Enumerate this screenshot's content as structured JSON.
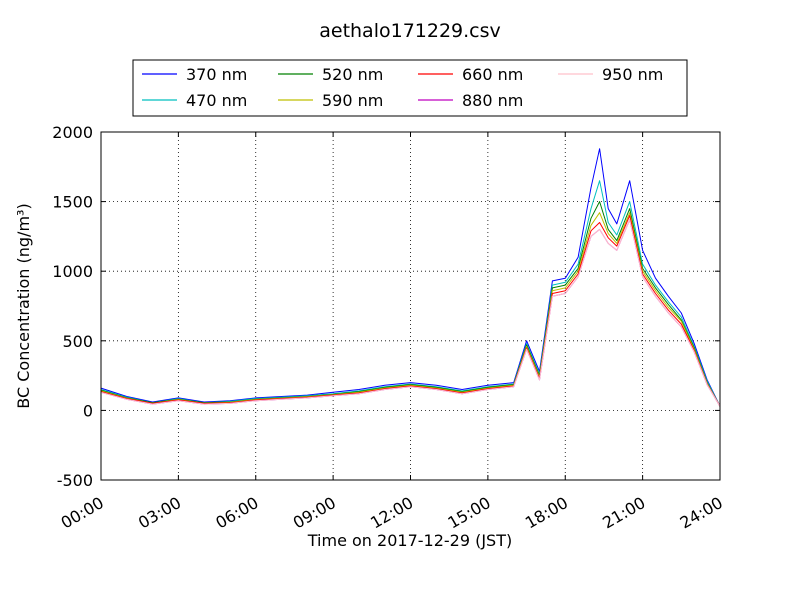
{
  "chart_data": {
    "type": "line",
    "title": "aethalo171229.csv",
    "xlabel": "Time on 2017-12-29 (JST)",
    "ylabel": "BC Concentration (ng/m³)",
    "xlim": [
      "00:00",
      "24:00"
    ],
    "ylim": [
      -500,
      2000
    ],
    "xticks": [
      "00:00",
      "03:00",
      "06:00",
      "09:00",
      "12:00",
      "15:00",
      "18:00",
      "21:00",
      "24:00"
    ],
    "yticks": [
      -500,
      0,
      500,
      1000,
      1500,
      2000
    ],
    "grid": true,
    "legend_position": "top-center",
    "series": [
      {
        "name": "370 nm",
        "color": "#0000ff",
        "x": [
          "00:00",
          "01:00",
          "02:00",
          "03:00",
          "04:00",
          "05:00",
          "06:00",
          "07:00",
          "08:00",
          "09:00",
          "10:00",
          "11:00",
          "12:00",
          "13:00",
          "14:00",
          "15:00",
          "16:00",
          "16:30",
          "17:00",
          "17:30",
          "18:00",
          "18:30",
          "19:00",
          "19:20",
          "19:40",
          "20:00",
          "20:30",
          "21:00",
          "21:30",
          "22:00",
          "22:30",
          "23:00",
          "23:30",
          "24:00"
        ],
        "y": [
          160,
          100,
          60,
          90,
          60,
          70,
          90,
          100,
          110,
          130,
          150,
          180,
          200,
          180,
          150,
          180,
          200,
          500,
          280,
          930,
          950,
          1100,
          1600,
          1880,
          1450,
          1340,
          1650,
          1150,
          950,
          820,
          700,
          480,
          220,
          30
        ]
      },
      {
        "name": "470 nm",
        "color": "#00bfbf",
        "x": [
          "00:00",
          "01:00",
          "02:00",
          "03:00",
          "04:00",
          "05:00",
          "06:00",
          "07:00",
          "08:00",
          "09:00",
          "10:00",
          "11:00",
          "12:00",
          "13:00",
          "14:00",
          "15:00",
          "16:00",
          "16:30",
          "17:00",
          "17:30",
          "18:00",
          "18:30",
          "19:00",
          "19:20",
          "19:40",
          "20:00",
          "20:30",
          "21:00",
          "21:30",
          "22:00",
          "22:30",
          "23:00",
          "23:30",
          "24:00"
        ],
        "y": [
          150,
          95,
          55,
          85,
          55,
          65,
          85,
          95,
          105,
          120,
          140,
          170,
          190,
          170,
          140,
          170,
          190,
          480,
          260,
          900,
          920,
          1050,
          1450,
          1650,
          1350,
          1260,
          1500,
          1050,
          900,
          780,
          670,
          460,
          210,
          30
        ]
      },
      {
        "name": "520 nm",
        "color": "#008000",
        "x": [
          "00:00",
          "01:00",
          "02:00",
          "03:00",
          "04:00",
          "05:00",
          "06:00",
          "07:00",
          "08:00",
          "09:00",
          "10:00",
          "11:00",
          "12:00",
          "13:00",
          "14:00",
          "15:00",
          "16:00",
          "16:30",
          "17:00",
          "17:30",
          "18:00",
          "18:30",
          "19:00",
          "19:20",
          "19:40",
          "20:00",
          "20:30",
          "21:00",
          "21:30",
          "22:00",
          "22:30",
          "23:00",
          "23:30",
          "24:00"
        ],
        "y": [
          145,
          90,
          55,
          80,
          55,
          60,
          80,
          90,
          100,
          115,
          135,
          165,
          185,
          165,
          135,
          165,
          185,
          470,
          250,
          880,
          900,
          1020,
          1380,
          1500,
          1300,
          1220,
          1450,
          1020,
          880,
          760,
          650,
          450,
          200,
          30
        ]
      },
      {
        "name": "590 nm",
        "color": "#bfbf00",
        "x": [
          "00:00",
          "01:00",
          "02:00",
          "03:00",
          "04:00",
          "05:00",
          "06:00",
          "07:00",
          "08:00",
          "09:00",
          "10:00",
          "11:00",
          "12:00",
          "13:00",
          "14:00",
          "15:00",
          "16:00",
          "16:30",
          "17:00",
          "17:30",
          "18:00",
          "18:30",
          "19:00",
          "19:20",
          "19:40",
          "20:00",
          "20:30",
          "21:00",
          "21:30",
          "22:00",
          "22:30",
          "23:00",
          "23:30",
          "24:00"
        ],
        "y": [
          140,
          88,
          50,
          78,
          50,
          58,
          78,
          88,
          98,
          112,
          130,
          160,
          180,
          160,
          130,
          160,
          180,
          460,
          240,
          860,
          880,
          1000,
          1330,
          1420,
          1270,
          1200,
          1420,
          1000,
          860,
          740,
          640,
          440,
          195,
          30
        ]
      },
      {
        "name": "660 nm",
        "color": "#ff0000",
        "x": [
          "00:00",
          "01:00",
          "02:00",
          "03:00",
          "04:00",
          "05:00",
          "06:00",
          "07:00",
          "08:00",
          "09:00",
          "10:00",
          "11:00",
          "12:00",
          "13:00",
          "14:00",
          "15:00",
          "16:00",
          "16:30",
          "17:00",
          "17:30",
          "18:00",
          "18:30",
          "19:00",
          "19:20",
          "19:40",
          "20:00",
          "20:30",
          "21:00",
          "21:30",
          "22:00",
          "22:30",
          "23:00",
          "23:30",
          "24:00"
        ],
        "y": [
          135,
          85,
          50,
          75,
          50,
          55,
          75,
          85,
          95,
          110,
          125,
          155,
          175,
          155,
          125,
          155,
          175,
          450,
          230,
          840,
          860,
          980,
          1290,
          1350,
          1240,
          1180,
          1400,
          980,
          840,
          720,
          620,
          430,
          190,
          30
        ]
      },
      {
        "name": "880 nm",
        "color": "#bf00bf",
        "x": [
          "00:00",
          "01:00",
          "02:00",
          "03:00",
          "04:00",
          "05:00",
          "06:00",
          "07:00",
          "08:00",
          "09:00",
          "10:00",
          "11:00",
          "12:00",
          "13:00",
          "14:00",
          "15:00",
          "16:00",
          "16:30",
          "17:00",
          "17:30",
          "18:00",
          "18:30",
          "19:00",
          "19:20",
          "19:40",
          "20:00",
          "20:30",
          "21:00",
          "21:30",
          "22:00",
          "22:30",
          "23:00",
          "23:30",
          "24:00"
        ],
        "y": [
          130,
          80,
          45,
          70,
          45,
          50,
          70,
          80,
          90,
          105,
          120,
          150,
          170,
          150,
          120,
          150,
          170,
          440,
          220,
          820,
          840,
          960,
          1250,
          1300,
          1200,
          1150,
          1370,
          960,
          820,
          700,
          600,
          420,
          185,
          30
        ]
      },
      {
        "name": "950 nm",
        "color": "#ffc0cb",
        "x": [
          "00:00",
          "01:00",
          "02:00",
          "03:00",
          "04:00",
          "05:00",
          "06:00",
          "07:00",
          "08:00",
          "09:00",
          "10:00",
          "11:00",
          "12:00",
          "13:00",
          "14:00",
          "15:00",
          "16:00",
          "16:30",
          "17:00",
          "17:30",
          "18:00",
          "18:30",
          "19:00",
          "19:20",
          "19:40",
          "20:00",
          "20:30",
          "21:00",
          "21:30",
          "22:00",
          "22:30",
          "23:00",
          "23:30",
          "24:00"
        ],
        "y": [
          130,
          80,
          45,
          70,
          45,
          50,
          70,
          80,
          90,
          105,
          120,
          150,
          170,
          150,
          120,
          150,
          170,
          440,
          220,
          820,
          840,
          960,
          1250,
          1300,
          1200,
          1150,
          1370,
          960,
          820,
          700,
          600,
          420,
          185,
          30
        ]
      }
    ]
  }
}
